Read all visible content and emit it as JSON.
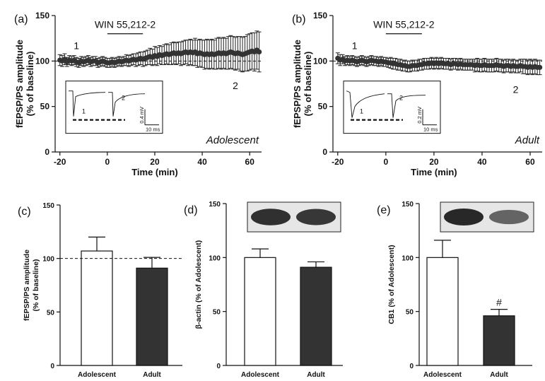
{
  "chart_data": [
    {
      "panel": "(a)",
      "type": "scatter",
      "group_label": "Adolescent",
      "drug_label": "WIN 55,212-2",
      "point_label_1": "1",
      "point_label_2": "2",
      "xlabel": "Time (min)",
      "ylabel_line1": "fEPSP/PS amplitude",
      "ylabel_line2": "(% of baseline)",
      "xlim": [
        -22,
        65
      ],
      "ylim": [
        0,
        150
      ],
      "xticks": [
        -20,
        0,
        20,
        40,
        60
      ],
      "yticks": [
        0,
        50,
        100,
        150
      ],
      "drug_window": [
        0,
        15
      ],
      "baseline": 100,
      "inset": {
        "label_1": "1",
        "label_2": "2",
        "scale_v": "0.4 mV",
        "scale_t": "10 ms"
      },
      "series": [
        {
          "x": [
            -20,
            -19,
            -18,
            -17,
            -16,
            -15,
            -14,
            -13,
            -12,
            -11,
            -10,
            -9,
            -8,
            -7,
            -6,
            -5,
            -4,
            -3,
            -2,
            -1,
            0,
            1,
            2,
            3,
            4,
            5,
            6,
            7,
            8,
            9,
            10,
            11,
            12,
            13,
            14,
            15,
            16,
            17,
            18,
            19,
            20,
            21,
            22,
            23,
            24,
            25,
            26,
            27,
            28,
            29,
            30,
            31,
            32,
            33,
            34,
            35,
            36,
            37,
            38,
            39,
            40,
            41,
            42,
            43,
            44,
            45,
            46,
            47,
            48,
            49,
            50,
            51,
            52,
            53,
            54,
            55,
            56,
            57,
            58,
            59,
            60,
            61,
            62,
            63,
            64
          ],
          "y": [
            101,
            100,
            102,
            99,
            101,
            100,
            101,
            99,
            98,
            100,
            99,
            100,
            101,
            99,
            100,
            100,
            98,
            99,
            100,
            99,
            98,
            98,
            99,
            98,
            99,
            100,
            99,
            100,
            101,
            100,
            101,
            102,
            101,
            102,
            103,
            102,
            103,
            104,
            105,
            104,
            106,
            105,
            107,
            106,
            107,
            108,
            107,
            108,
            109,
            108,
            109,
            108,
            109,
            110,
            109,
            110,
            109,
            110,
            108,
            109,
            108,
            107,
            108,
            107,
            108,
            107,
            108,
            109,
            108,
            109,
            108,
            109,
            110,
            109,
            108,
            109,
            108,
            107,
            108,
            109,
            110,
            111,
            110,
            112,
            110
          ],
          "error": [
            6,
            6,
            6,
            5,
            5,
            5,
            5,
            5,
            5,
            5,
            5,
            5,
            5,
            5,
            5,
            5,
            5,
            5,
            5,
            5,
            5,
            5,
            5,
            5,
            5,
            5,
            5,
            5,
            6,
            6,
            6,
            6,
            7,
            7,
            7,
            8,
            8,
            8,
            9,
            9,
            10,
            10,
            10,
            10,
            11,
            11,
            11,
            12,
            12,
            12,
            12,
            13,
            13,
            13,
            14,
            14,
            14,
            15,
            15,
            15,
            15,
            16,
            16,
            16,
            16,
            16,
            17,
            17,
            17,
            17,
            17,
            18,
            18,
            18,
            18,
            18,
            19,
            19,
            19,
            20,
            20,
            20,
            21,
            21,
            22
          ]
        }
      ]
    },
    {
      "panel": "(b)",
      "type": "scatter",
      "group_label": "Adult",
      "drug_label": "WIN 55,212-2",
      "point_label_1": "1",
      "point_label_2": "2",
      "xlabel": "Time (min)",
      "ylabel_line1": "fEPSP/PS amplitude",
      "ylabel_line2": "(% of baseline)",
      "xlim": [
        -22,
        65
      ],
      "ylim": [
        0,
        150
      ],
      "xticks": [
        -20,
        0,
        20,
        40,
        60
      ],
      "yticks": [
        0,
        50,
        100,
        150
      ],
      "drug_window": [
        0,
        15
      ],
      "baseline": 100,
      "inset": {
        "label_1": "1",
        "label_2": "2",
        "scale_v": "0.2 mV",
        "scale_t": "10 ms"
      },
      "series": [
        {
          "x": [
            -20,
            -19,
            -18,
            -17,
            -16,
            -15,
            -14,
            -13,
            -12,
            -11,
            -10,
            -9,
            -8,
            -7,
            -6,
            -5,
            -4,
            -3,
            -2,
            -1,
            0,
            1,
            2,
            3,
            4,
            5,
            6,
            7,
            8,
            9,
            10,
            11,
            12,
            13,
            14,
            15,
            16,
            17,
            18,
            19,
            20,
            21,
            22,
            23,
            24,
            25,
            26,
            27,
            28,
            29,
            30,
            31,
            32,
            33,
            34,
            35,
            36,
            37,
            38,
            39,
            40,
            41,
            42,
            43,
            44,
            45,
            46,
            47,
            48,
            49,
            50,
            51,
            52,
            53,
            54,
            55,
            56,
            57,
            58,
            59,
            60,
            61,
            62,
            63,
            64
          ],
          "y": [
            103,
            101,
            102,
            100,
            101,
            100,
            101,
            100,
            99,
            100,
            101,
            100,
            99,
            100,
            101,
            100,
            100,
            99,
            100,
            99,
            99,
            98,
            98,
            97,
            97,
            96,
            96,
            95,
            95,
            94,
            94,
            95,
            95,
            95,
            96,
            96,
            97,
            97,
            97,
            98,
            97,
            98,
            97,
            98,
            97,
            97,
            97,
            96,
            97,
            97,
            96,
            97,
            96,
            96,
            96,
            96,
            96,
            95,
            96,
            95,
            95,
            96,
            95,
            95,
            95,
            95,
            96,
            95,
            95,
            94,
            95,
            95,
            94,
            95,
            94,
            94,
            95,
            94,
            94,
            93,
            94,
            93,
            94,
            93,
            93
          ],
          "error": [
            6,
            6,
            5,
            5,
            5,
            5,
            5,
            5,
            5,
            5,
            5,
            5,
            5,
            5,
            5,
            5,
            5,
            5,
            5,
            5,
            5,
            5,
            6,
            6,
            6,
            6,
            6,
            6,
            6,
            6,
            6,
            6,
            6,
            6,
            6,
            6,
            6,
            6,
            6,
            6,
            6,
            6,
            6,
            6,
            6,
            6,
            6,
            6,
            6,
            6,
            6,
            6,
            6,
            6,
            6,
            6,
            6,
            7,
            7,
            7,
            7,
            7,
            7,
            7,
            7,
            7,
            7,
            7,
            7,
            7,
            7,
            7,
            7,
            7,
            7,
            7,
            7,
            8,
            8,
            8,
            8,
            8,
            8,
            8,
            8
          ]
        }
      ]
    },
    {
      "panel": "(c)",
      "type": "bar",
      "categories": [
        "Adolescent",
        "Adult"
      ],
      "values": [
        107,
        91
      ],
      "errors": [
        13,
        10
      ],
      "fills": [
        "#ffffff",
        "#333333"
      ],
      "ylabel_line1": "fEPSP/PS amplitude",
      "ylabel_line2": "(% of baseline)",
      "ylim": [
        0,
        150
      ],
      "yticks": [
        0,
        50,
        100,
        150
      ],
      "baseline": 100
    },
    {
      "panel": "(d)",
      "type": "bar",
      "categories": [
        "Adolescent",
        "Adult"
      ],
      "values": [
        100,
        91
      ],
      "errors": [
        8,
        5
      ],
      "fills": [
        "#ffffff",
        "#333333"
      ],
      "ylabel": "β-actin (% of Adolescent)",
      "ylim": [
        0,
        150
      ],
      "yticks": [
        0,
        50,
        100,
        150
      ],
      "blot": {
        "band_intensity": [
          0.95,
          0.9
        ]
      }
    },
    {
      "panel": "(e)",
      "type": "bar",
      "categories": [
        "Adolescent",
        "Adult"
      ],
      "values": [
        100,
        46
      ],
      "errors": [
        16,
        6
      ],
      "fills": [
        "#ffffff",
        "#333333"
      ],
      "ylabel": "CB1 (% of Adolescent)",
      "ylim": [
        0,
        150
      ],
      "yticks": [
        0,
        50,
        100,
        150
      ],
      "significance": [
        "",
        "#"
      ],
      "blot": {
        "band_intensity": [
          1.0,
          0.6
        ]
      }
    }
  ]
}
